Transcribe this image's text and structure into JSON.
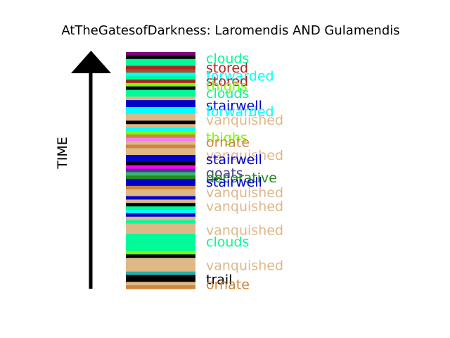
{
  "chart_data": {
    "type": "bar",
    "title": "AtTheGatesofDarkness: Laromendis AND Gulamendis",
    "ylabel": "TIME",
    "colors": {
      "clouds": "#00fa9a",
      "stored": "#b22222",
      "forwarded": "#00ffff",
      "thighs": "#7cfc00",
      "stairwell": "#0000cd",
      "vanquished": "#deb887",
      "ornate": "#cd853f",
      "goats": "#483d8b",
      "decorative": "#228b22",
      "trail": "#000000",
      "purple": "#800080",
      "violet": "#ee82ee",
      "magenta": "#ff00ff",
      "seagreen": "#3cb371",
      "brown": "#a0522d",
      "orange": "#ff8c00",
      "gray": "#808080",
      "teal": "#20b2aa",
      "pink": "#dda0dd"
    },
    "stripes": [
      "purple",
      "trail",
      "clouds",
      "clouds",
      "stored",
      "brown",
      "forwarded",
      "clouds",
      "stored",
      "thighs",
      "trail",
      "clouds",
      "clouds",
      "vanquished",
      "stairwell",
      "stairwell",
      "forwarded",
      "forwarded",
      "vanquished",
      "vanquished",
      "trail",
      "vanquished",
      "forwarded",
      "thighs",
      "ornate",
      "violet",
      "vanquished",
      "ornate",
      "vanquished",
      "vanquished",
      "stairwell",
      "stairwell",
      "trail",
      "magenta",
      "goats",
      "seagreen",
      "decorative",
      "stairwell",
      "stairwell",
      "ornate",
      "vanquished",
      "vanquished",
      "stairwell",
      "vanquished",
      "trail",
      "clouds",
      "forwarded",
      "stairwell",
      "vanquished",
      "clouds",
      "vanquished",
      "vanquished",
      "vanquished",
      "clouds",
      "clouds",
      "clouds",
      "clouds",
      "clouds",
      "thighs",
      "trail",
      "vanquished",
      "vanquished",
      "vanquished",
      "vanquished",
      "teal",
      "trail",
      "trail",
      "vanquished",
      "ornate"
    ],
    "labels": [
      {
        "text": "clouds",
        "key": "clouds",
        "t": 0.975
      },
      {
        "text": "stored",
        "key": "stored",
        "t": 0.935
      },
      {
        "text": "forwarded",
        "key": "forwarded",
        "t": 0.9
      },
      {
        "text": "stored",
        "key": "stored",
        "t": 0.878
      },
      {
        "text": "thighs",
        "key": "thighs",
        "t": 0.858
      },
      {
        "text": "clouds",
        "key": "clouds",
        "t": 0.828
      },
      {
        "text": "stairwell",
        "key": "stairwell",
        "t": 0.775
      },
      {
        "text": "forwarded",
        "key": "forwarded",
        "t": 0.75
      },
      {
        "text": "vanquished",
        "key": "vanquished",
        "t": 0.715
      },
      {
        "text": "thighs",
        "key": "thighs",
        "t": 0.64
      },
      {
        "text": "ornate",
        "key": "ornate",
        "t": 0.62
      },
      {
        "text": "vanquished",
        "key": "vanquished",
        "t": 0.565
      },
      {
        "text": "stairwell",
        "key": "stairwell",
        "t": 0.548
      },
      {
        "text": "goats",
        "key": "goats",
        "t": 0.49
      },
      {
        "text": "decorative",
        "key": "decorative",
        "t": 0.47
      },
      {
        "text": "stairwell",
        "key": "stairwell",
        "t": 0.453
      },
      {
        "text": "vanquished",
        "key": "vanquished",
        "t": 0.408
      },
      {
        "text": "vanquished",
        "key": "vanquished",
        "t": 0.35
      },
      {
        "text": "vanquished",
        "key": "vanquished",
        "t": 0.248
      },
      {
        "text": "clouds",
        "key": "clouds",
        "t": 0.2
      },
      {
        "text": "vanquished",
        "key": "vanquished",
        "t": 0.1
      },
      {
        "text": "trail",
        "key": "trail",
        "t": 0.04
      },
      {
        "text": "ornate",
        "key": "ornate",
        "t": 0.02
      }
    ]
  }
}
